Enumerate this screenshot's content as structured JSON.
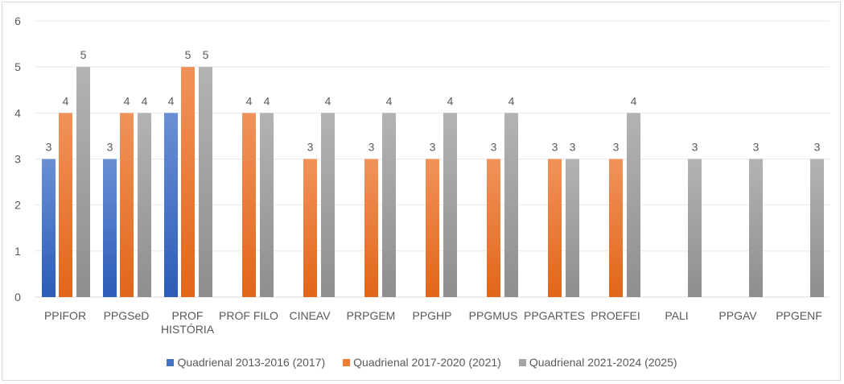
{
  "chart_data": {
    "type": "bar",
    "title": "",
    "xlabel": "",
    "ylabel": "",
    "ylim": [
      0,
      6
    ],
    "yticks": [
      "0",
      "1",
      "2",
      "3",
      "4",
      "5",
      "6"
    ],
    "grid": true,
    "legend_position": "bottom",
    "categories": [
      "PPIFOR",
      "PPGSeD",
      "PROF HISTÓRIA",
      "PROF FILO",
      "CINEAV",
      "PRPGEM",
      "PPGHP",
      "PPGMUS",
      "PPGARTES",
      "PROEFEI",
      "PALI",
      "PPGAV",
      "PPGENF"
    ],
    "series": [
      {
        "name": "Quadrienal 2013-2016 (2017)",
        "color": "#4472c4",
        "values": [
          3,
          3,
          4,
          null,
          null,
          null,
          null,
          null,
          null,
          null,
          null,
          null,
          null
        ]
      },
      {
        "name": "Quadrienal 2017-2020 (2021)",
        "color": "#ed7d31",
        "values": [
          4,
          4,
          5,
          4,
          3,
          3,
          3,
          3,
          3,
          3,
          null,
          null,
          null
        ]
      },
      {
        "name": "Quadrienal 2021-2024 (2025)",
        "color": "#a5a5a5",
        "values": [
          5,
          4,
          5,
          4,
          4,
          4,
          4,
          4,
          3,
          4,
          3,
          3,
          3
        ]
      }
    ]
  }
}
